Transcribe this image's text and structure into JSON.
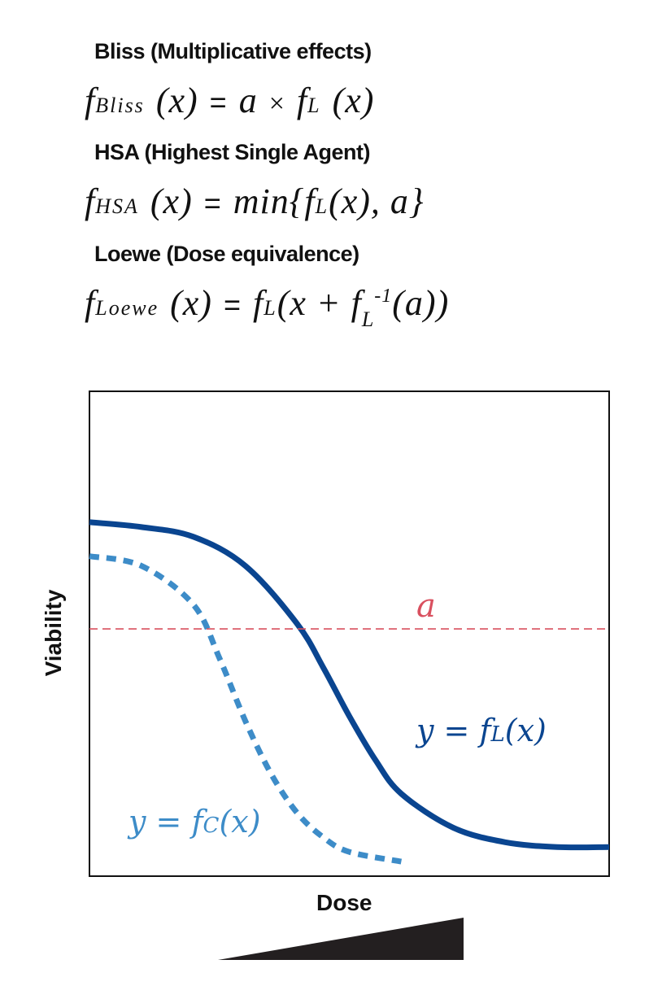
{
  "models": [
    {
      "title": "Bliss (Multiplicative effects)"
    },
    {
      "title": "HSA (Highest Single Agent)"
    },
    {
      "title": "Loewe (Dose equivalence)"
    }
  ],
  "formulas": {
    "bliss": {
      "f": "f",
      "sub": "Bliss",
      "arg": "(x)",
      "eq": "=",
      "rhs_a": "a",
      "times": "×",
      "rhs_f": "f",
      "rhs_sub": "L",
      "rhs_arg": "(x)"
    },
    "hsa": {
      "f": "f",
      "sub": "HSA",
      "arg": "(x)",
      "eq": "=",
      "rhs_min": "min{",
      "rhs_f": "f",
      "rhs_sub": "L",
      "rhs_rest": "(x), a}"
    },
    "loewe": {
      "f": "f",
      "sub": "Loewe",
      "arg": "(x)",
      "eq": "=",
      "rhs_f": "f",
      "rhs_sub": "L",
      "rhs_open": "(x + ",
      "rhs_f2": "f",
      "rhs_sup": "-1",
      "rhs_sub2": "L",
      "rhs_close": "(a))"
    }
  },
  "chart": {
    "xlabel": "Dose",
    "ylabel": "Viability",
    "threshold_label": "a",
    "curve_L_label": {
      "lhs": "y = f",
      "sub": "L",
      "arg": "(x)"
    },
    "curve_C_label": {
      "lhs": "y = f",
      "sub": "C",
      "arg": "(x)"
    }
  },
  "colors": {
    "curve_L": "#0a4590",
    "curve_C": "#3d8cc8",
    "threshold": "#d9505f",
    "text": "#111111",
    "dose_wedge": "#231f20"
  },
  "chart_data": {
    "type": "line",
    "title": "",
    "xlabel": "Dose",
    "ylabel": "Viability",
    "xlim": [
      0,
      1
    ],
    "ylim": [
      0,
      1
    ],
    "grid": false,
    "series": [
      {
        "style": "solid",
        "color": "#0a4590",
        "x": [
          0.0,
          0.1,
          0.2,
          0.3,
          0.4,
          0.45,
          0.5,
          0.55,
          0.6,
          0.7,
          0.8,
          0.9,
          1.0
        ],
        "y": [
          0.73,
          0.72,
          0.7,
          0.64,
          0.52,
          0.43,
          0.33,
          0.24,
          0.17,
          0.1,
          0.07,
          0.06,
          0.06
        ]
      },
      {
        "style": "dashed",
        "color": "#3d8cc8",
        "x": [
          0.0,
          0.1,
          0.2,
          0.25,
          0.3,
          0.35,
          0.4,
          0.45,
          0.5,
          0.6
        ],
        "y": [
          0.66,
          0.64,
          0.56,
          0.45,
          0.32,
          0.21,
          0.13,
          0.08,
          0.05,
          0.03
        ]
      },
      {
        "style": "threshold",
        "color": "#d9505f",
        "x": [
          0.0,
          1.0
        ],
        "y": [
          0.51,
          0.51
        ]
      }
    ]
  }
}
